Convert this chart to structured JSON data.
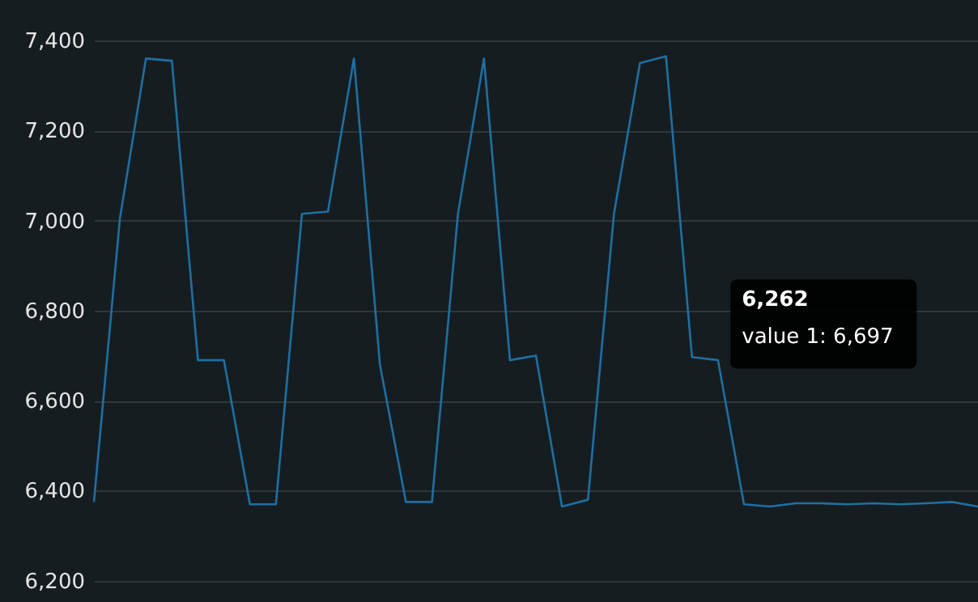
{
  "chart_data": {
    "type": "line",
    "categories": [
      null,
      null,
      null,
      null,
      null,
      null,
      null,
      null,
      null,
      null,
      null,
      null,
      null,
      null,
      null,
      null,
      null,
      null,
      null,
      null,
      null,
      null,
      null,
      null,
      null,
      null,
      null,
      null,
      null,
      null,
      null,
      null,
      null,
      null,
      null
    ],
    "series": [
      {
        "color": "#1f6fa3",
        "values": [
          6375,
          7005,
          7360,
          7355,
          6690,
          6690,
          6370,
          6370,
          7015,
          7020,
          7360,
          6680,
          6375,
          6375,
          7015,
          7360,
          6690,
          6700,
          6365,
          6380,
          7015,
          7350,
          7365,
          6697,
          6690,
          6370,
          6365,
          6372,
          6372,
          6370,
          6372,
          6370,
          6372,
          6375,
          6365
        ]
      }
    ],
    "ylim": [
      6196,
      7490
    ],
    "yticks": [
      {
        "value": 6200,
        "label": "6,200"
      },
      {
        "value": 6400,
        "label": "6,400"
      },
      {
        "value": 6600,
        "label": "6,600"
      },
      {
        "value": 6800,
        "label": "6,800"
      },
      {
        "value": 7000,
        "label": "7,000"
      },
      {
        "value": 7200,
        "label": "7,200"
      },
      {
        "value": 7400,
        "label": "7,400"
      }
    ],
    "tick_labels": "y",
    "grid": "y",
    "line_style": "solid",
    "annotations": [
      "6,262",
      "value 1: 6,697"
    ]
  }
}
